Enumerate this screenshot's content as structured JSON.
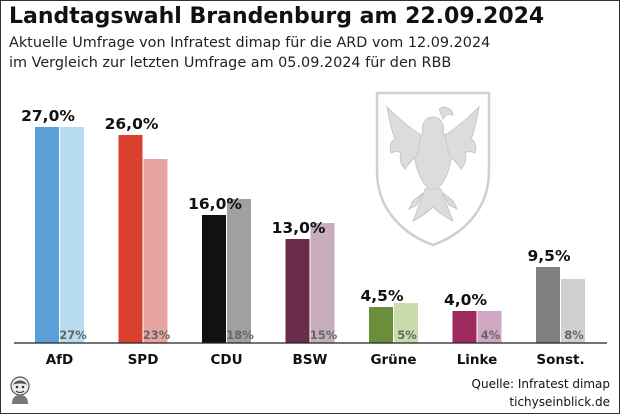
{
  "header": {
    "title": "Landtagswahl Brandenburg am 22.09.2024",
    "subtitle_line1": "Aktuelle Umfrage von Infratest dimap für die ARD vom 12.09.2024",
    "subtitle_line2": "im Vergleich zur letzten Umfrage am 05.09.2024 für den RBB"
  },
  "footer": {
    "source": "Quelle: Infratest dimap",
    "site": "tichyseinblick.de"
  },
  "chart_data": {
    "type": "bar",
    "title": "Landtagswahl Brandenburg am 22.09.2024",
    "xlabel": "",
    "ylabel": "",
    "ylim": [
      0,
      28
    ],
    "grid": false,
    "categories": [
      "AfD",
      "SPD",
      "CDU",
      "BSW",
      "Grüne",
      "Linke",
      "Sonst."
    ],
    "series": [
      {
        "name": "Umfrage 12.09.2024",
        "values": [
          27.0,
          26.0,
          16.0,
          13.0,
          4.5,
          4.0,
          9.5
        ],
        "labels": [
          "27,0%",
          "26,0%",
          "16,0%",
          "13,0%",
          "4,5%",
          "4,0%",
          "9,5%"
        ],
        "colors": [
          "#5a9fd8",
          "#d94030",
          "#111111",
          "#6b2b4a",
          "#6a8f3a",
          "#9c2a5e",
          "#808080"
        ]
      },
      {
        "name": "Umfrage 05.09.2024",
        "values": [
          27,
          23,
          18,
          15,
          5,
          4,
          8
        ],
        "labels": [
          "27%",
          "23%",
          "18%",
          "15%",
          "5%",
          "4%",
          "8%"
        ],
        "colors": [
          "#b7dcf2",
          "#e8a4a0",
          "#a0a0a0",
          "#c8aebd",
          "#c9dcaa",
          "#d0a6c3",
          "#d0d0d0"
        ]
      }
    ]
  }
}
